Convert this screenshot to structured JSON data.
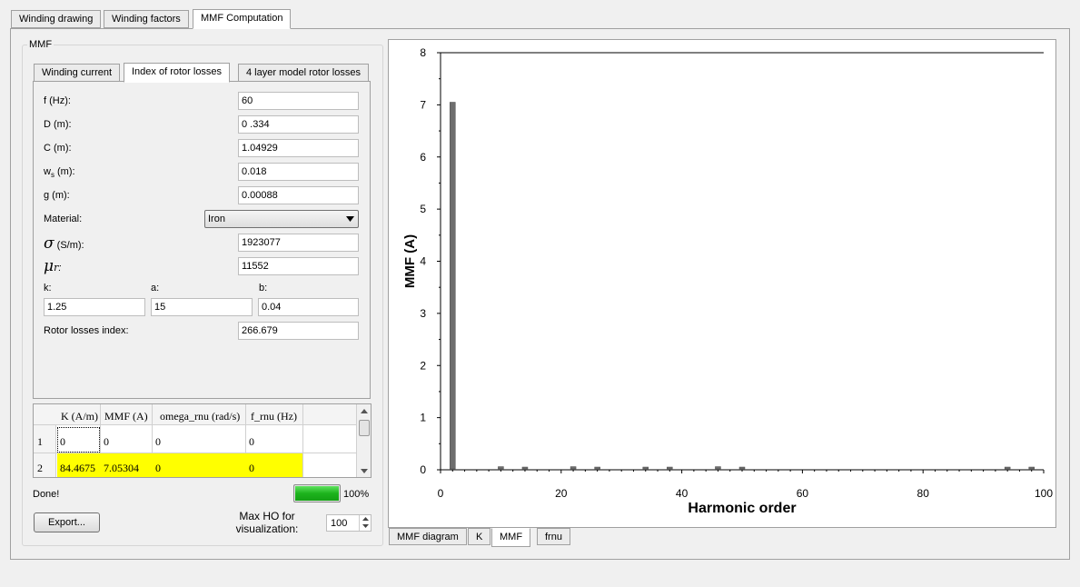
{
  "top_tabs": [
    "Winding drawing",
    "Winding factors",
    "MMF Computation"
  ],
  "mmf_group_label": "MMF",
  "inner_tabs": [
    "Winding current",
    "Index of rotor losses",
    "4 layer model rotor losses"
  ],
  "fields": {
    "f_label": "f (Hz):",
    "f_value": "60",
    "D_label": "D (m):",
    "D_value": "0 .334",
    "C_label": "C (m):",
    "C_value": "1.04929",
    "ws_label_main": "w",
    "ws_label_sub": "s",
    "ws_label_rest": " (m):",
    "ws_value": "0.018",
    "g_label": "g (m):",
    "g_value": "0.00088",
    "material_label": "Material:",
    "material_value": "Iron",
    "sigma_symbol": "σ",
    "sigma_label": " (S/m):",
    "sigma_value": "1923077",
    "mu_symbol": "μ",
    "mu_sub": "r",
    "mu_colon": ":",
    "mu_value": "11552",
    "k_label": "k:",
    "k_value": "1.25",
    "a_label": "a:",
    "a_value": "15",
    "b_label": "b:",
    "b_value": "0.04",
    "rotor_label": "Rotor losses index:",
    "rotor_value": "266.679"
  },
  "table": {
    "headers": [
      "K (A/m)",
      "MMF (A)",
      "omega_rnu (rad/s)",
      "f_rnu (Hz)"
    ],
    "rows": [
      {
        "index": "1",
        "cells": [
          "0",
          "0",
          "0",
          "0"
        ]
      },
      {
        "index": "2",
        "cells": [
          "84.4675",
          "7.05304",
          "0",
          "0"
        ]
      }
    ]
  },
  "status": "Done!",
  "progress": {
    "value": 100,
    "label": "100%"
  },
  "export_label": "Export...",
  "max_ho_label_line1": "Max HO for",
  "max_ho_label_line2": "visualization:",
  "max_ho_value": "100",
  "bottom_tabs": [
    "MMF diagram",
    "K",
    "MMF",
    "frnu"
  ],
  "colors": {
    "highlight": "#ffff00",
    "bar": "#6e6e6e",
    "progress": "#1db31d"
  },
  "chart_data": {
    "type": "bar",
    "xlabel": "Harmonic order",
    "ylabel": "MMF (A)",
    "xlim": [
      0,
      100
    ],
    "ylim": [
      0,
      8
    ],
    "xticks": [
      0,
      20,
      40,
      60,
      80,
      100
    ],
    "yticks": [
      0,
      1,
      2,
      3,
      4,
      5,
      6,
      7,
      8
    ],
    "grid": false,
    "x": [
      2,
      10,
      14,
      22,
      26,
      34,
      38,
      46,
      50,
      94,
      98
    ],
    "values": [
      7.05,
      0.06,
      0.03,
      0.06,
      0.04,
      0.02,
      0.02,
      0.06,
      0.04,
      0.03,
      0.02
    ]
  }
}
